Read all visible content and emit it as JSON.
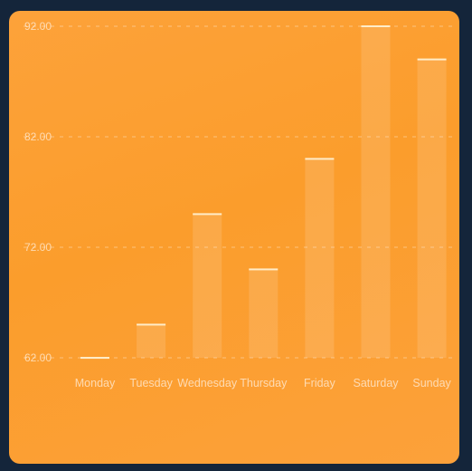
{
  "chart_data": {
    "type": "bar",
    "title": "",
    "xlabel": "",
    "ylabel": "",
    "categories": [
      "Monday",
      "Tuesday",
      "Wednesday",
      "Thursday",
      "Friday",
      "Saturday",
      "Sunday"
    ],
    "values": [
      62.0,
      65.0,
      75.0,
      70.0,
      80.0,
      92.0,
      89.0
    ],
    "ylim": [
      62,
      92
    ],
    "yticks": [
      "62.00",
      "72.00",
      "82.00",
      "92.00"
    ],
    "grid": true,
    "colors": {
      "card": "#fca03a",
      "background": "#14253a",
      "bar": "#ffffff",
      "bar_cap": "#fff0d0"
    }
  }
}
